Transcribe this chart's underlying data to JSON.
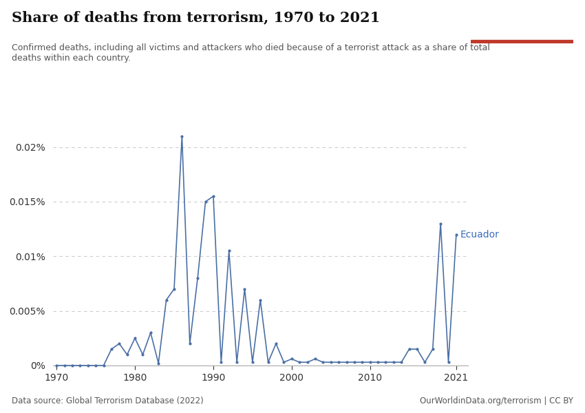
{
  "title": "Share of deaths from terrorism, 1970 to 2021",
  "subtitle": "Confirmed deaths, including all victims and attackers who died because of a terrorist attack as a share of total\ndeaths within each country.",
  "country": "Ecuador",
  "datasource": "Data source: Global Terrorism Database (2022)",
  "url": "OurWorldinData.org/terrorism | CC BY",
  "line_color": "#4a6fa5",
  "background_color": "#ffffff",
  "years": [
    1970,
    1971,
    1972,
    1973,
    1974,
    1975,
    1976,
    1977,
    1978,
    1979,
    1980,
    1981,
    1982,
    1983,
    1984,
    1985,
    1986,
    1987,
    1988,
    1989,
    1990,
    1991,
    1992,
    1993,
    1994,
    1995,
    1996,
    1997,
    1998,
    1999,
    2000,
    2001,
    2002,
    2003,
    2004,
    2005,
    2006,
    2007,
    2008,
    2009,
    2010,
    2011,
    2012,
    2013,
    2014,
    2015,
    2016,
    2017,
    2018,
    2019,
    2020,
    2021
  ],
  "values": [
    0.0,
    0.0,
    0.0,
    0.0,
    0.0,
    0.0,
    0.0,
    1.5e-05,
    2e-05,
    1e-05,
    2.5e-05,
    1e-05,
    3e-05,
    2e-06,
    6e-05,
    7e-05,
    0.00021,
    2e-05,
    8e-05,
    0.00015,
    0.000155,
    3e-06,
    0.000105,
    3e-06,
    7e-05,
    3e-06,
    6e-05,
    3e-06,
    2e-05,
    3e-06,
    6e-06,
    3e-06,
    3e-06,
    6e-06,
    3e-06,
    3e-06,
    3e-06,
    3e-06,
    3e-06,
    3e-06,
    3e-06,
    3e-06,
    3e-06,
    3e-06,
    3e-06,
    1.5e-05,
    1.5e-05,
    3e-06,
    1.5e-05,
    0.00013,
    3e-06,
    0.00012
  ],
  "ytick_vals": [
    0.0,
    5e-05,
    0.0001,
    0.00015,
    0.0002
  ],
  "ytick_labels": [
    "0%",
    "0.005%",
    "0.01%",
    "0.015%",
    "0.02%"
  ],
  "ylim_max": 0.000225,
  "xlim": [
    1969.5,
    2022.5
  ],
  "xticks": [
    1970,
    1980,
    1990,
    2000,
    2010,
    2021
  ]
}
